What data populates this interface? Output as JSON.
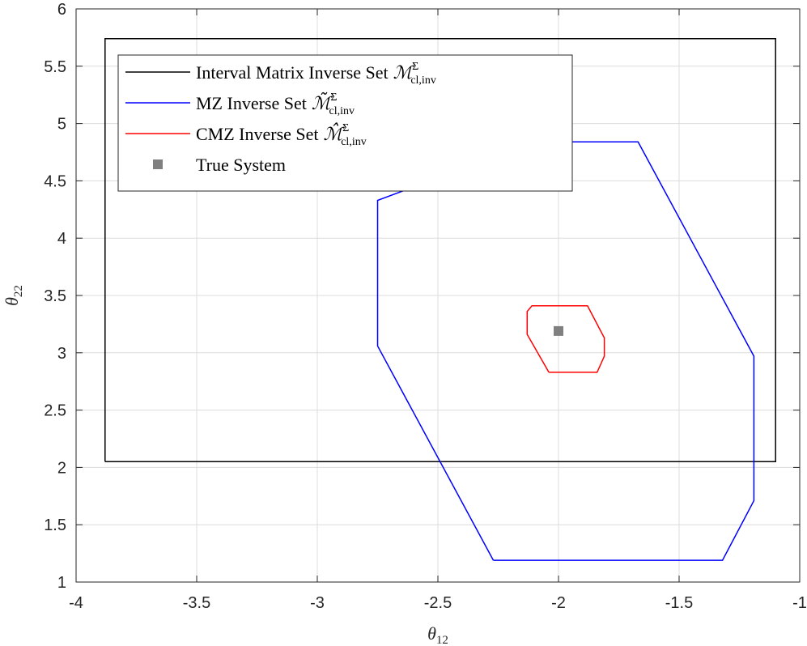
{
  "chart_data": {
    "type": "line",
    "xlabel": "θ",
    "xlabel_sub": "12",
    "ylabel": "θ",
    "ylabel_sub": "22",
    "xlim": [
      -4,
      -1
    ],
    "ylim": [
      1,
      6
    ],
    "xticks": [
      -4,
      -3.5,
      -3,
      -2.5,
      -2,
      -1.5,
      -1
    ],
    "xtick_labels": [
      "-4",
      "-3.5",
      "-3",
      "-2.5",
      "-2",
      "-1.5",
      "-1"
    ],
    "yticks": [
      1,
      1.5,
      2,
      2.5,
      3,
      3.5,
      4,
      4.5,
      5,
      5.5,
      6
    ],
    "ytick_labels": [
      "1",
      "1.5",
      "2",
      "2.5",
      "3",
      "3.5",
      "4",
      "4.5",
      "5",
      "5.5",
      "6"
    ],
    "grid": true,
    "legend_position": "top-left",
    "series": [
      {
        "name": "Interval Matrix Inverse Set",
        "name_math": "ℳ",
        "name_sup": "Σ",
        "name_sub": "cl,inv",
        "color": "#000000",
        "type": "polygon",
        "points": [
          [
            -3.88,
            2.05
          ],
          [
            -1.1,
            2.05
          ],
          [
            -1.1,
            5.74
          ],
          [
            -3.88,
            5.74
          ],
          [
            -3.88,
            2.05
          ]
        ]
      },
      {
        "name": "MZ Inverse Set",
        "name_math": "ℳ̃",
        "name_sup": "Σ",
        "name_sub": "cl,inv",
        "color": "#0000ff",
        "type": "polygon",
        "points": [
          [
            -2.27,
            1.19
          ],
          [
            -1.32,
            1.19
          ],
          [
            -1.19,
            1.71
          ],
          [
            -1.19,
            2.97
          ],
          [
            -1.67,
            4.84
          ],
          [
            -2.1,
            4.84
          ],
          [
            -2.75,
            4.33
          ],
          [
            -2.75,
            3.06
          ],
          [
            -2.27,
            1.19
          ]
        ]
      },
      {
        "name": "CMZ Inverse Set",
        "name_math": "ℳ̂",
        "name_sup": "Σ",
        "name_sub": "cl,inv",
        "color": "#ff0000",
        "type": "polygon",
        "points": [
          [
            -2.04,
            2.83
          ],
          [
            -1.84,
            2.83
          ],
          [
            -1.81,
            2.97
          ],
          [
            -1.81,
            3.13
          ],
          [
            -1.88,
            3.41
          ],
          [
            -2.11,
            3.41
          ],
          [
            -2.13,
            3.36
          ],
          [
            -2.13,
            3.16
          ],
          [
            -2.04,
            2.83
          ]
        ]
      },
      {
        "name": "True System",
        "color": "#808080",
        "type": "scatter",
        "marker": "square",
        "points": [
          [
            -2.0,
            3.19
          ]
        ]
      }
    ]
  }
}
